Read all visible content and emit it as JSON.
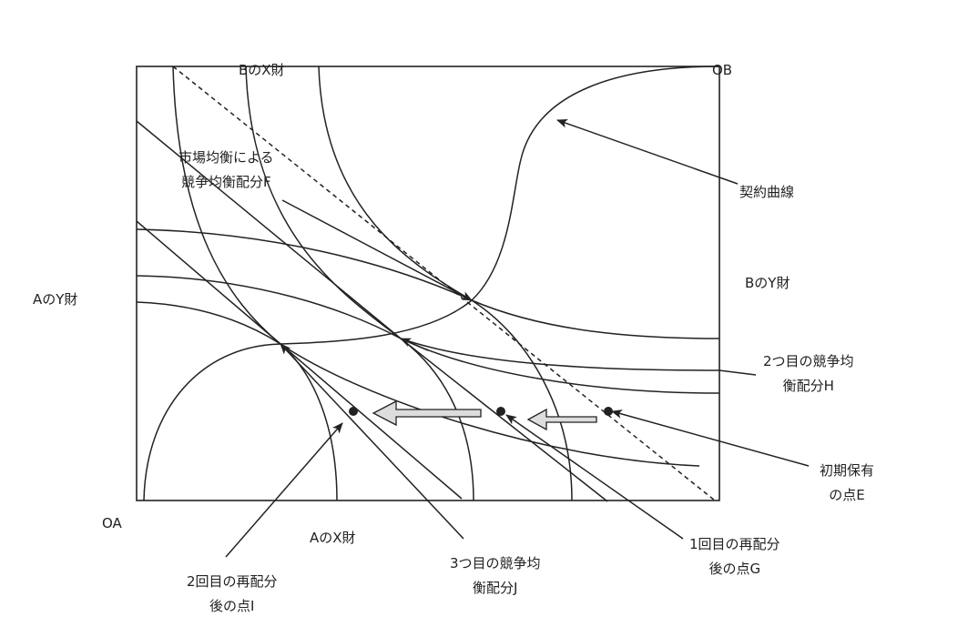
{
  "axes": {
    "b_x_good": "BのX財",
    "b_origin": "OB",
    "a_y_good": "AのY財",
    "b_y_good": "BのY財",
    "a_origin": "OA",
    "a_x_good": "AのX財"
  },
  "annotations": {
    "market_equilibrium_f": [
      "市場均衡による",
      "競争均衡配分F"
    ],
    "contract_curve": "契約曲線",
    "second_equilibrium_h": [
      "2つ目の競争均",
      "衡配分H"
    ],
    "initial_endowment_e": [
      "初期保有",
      "の点E"
    ],
    "first_redistribution_g": [
      "1回目の再配分",
      "後の点G"
    ],
    "third_equilibrium_j": [
      "3つ目の競争均",
      "衡配分J"
    ],
    "second_redistribution_i": [
      "2回目の再配分",
      "後の点I"
    ]
  },
  "colors": {
    "line": "#222222",
    "background": "#ffffff",
    "hollow_arrow_fill": "#bbbbbb"
  }
}
